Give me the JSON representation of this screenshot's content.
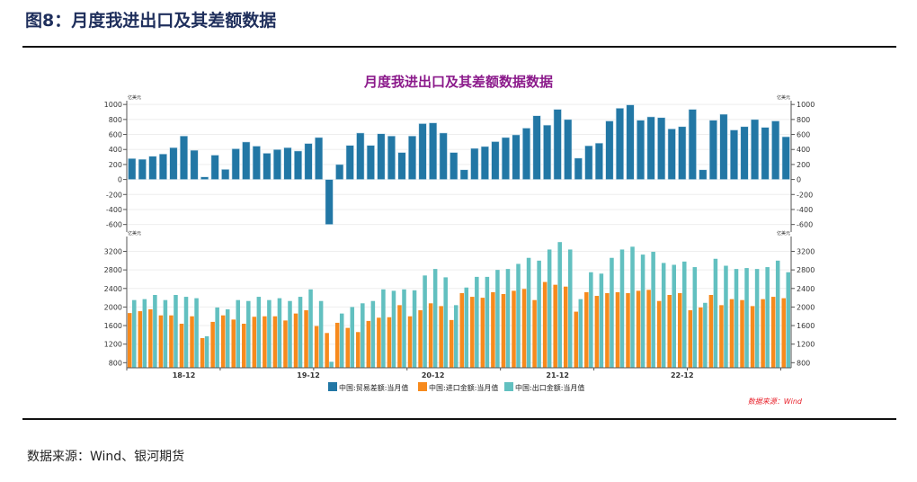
{
  "header": {
    "figure_title": "图8：月度我进出口及其差额数据"
  },
  "footer": {
    "source": "数据来源：Wind、银河期货"
  },
  "colors": {
    "balance": "#2277a5",
    "imports": "#f78a1d",
    "exports": "#62c0c0",
    "title": "#8b1a8b",
    "source_note": "#e8202a"
  },
  "chart_data": [
    {
      "type": "bar",
      "title": "月度我进出口及其差额数据数据",
      "unit_left": "亿美元",
      "unit_right": "亿美元",
      "ylim": [
        -700,
        1050
      ],
      "yticks": [
        -600,
        -400,
        -200,
        0,
        200,
        400,
        600,
        800,
        1000
      ],
      "grid": true,
      "series": [
        {
          "name": "中国:贸易差额:当月值",
          "color": "#2277a5",
          "values": [
            280,
            270,
            310,
            340,
            425,
            580,
            390,
            35,
            325,
            135,
            410,
            500,
            445,
            350,
            400,
            425,
            380,
            480,
            560,
            -600,
            200,
            455,
            620,
            455,
            610,
            580,
            360,
            580,
            745,
            755,
            620,
            360,
            130,
            415,
            440,
            505,
            560,
            595,
            685,
            850,
            725,
            935,
            800,
            285,
            450,
            485,
            780,
            950,
            995,
            790,
            835,
            825,
            675,
            705,
            935,
            130,
            790,
            870,
            660,
            705,
            800,
            695,
            780,
            570
          ]
        }
      ]
    },
    {
      "type": "bar",
      "unit_left": "亿美元",
      "unit_right": "亿美元",
      "ylim": [
        690,
        3520
      ],
      "yticks": [
        800,
        1200,
        1600,
        2000,
        2400,
        2800,
        3200
      ],
      "grid": true,
      "x_tick_labels": [
        {
          "index": 5,
          "label": "18-12"
        },
        {
          "index": 17,
          "label": "19-12"
        },
        {
          "index": 29,
          "label": "20-12"
        },
        {
          "index": 41,
          "label": "21-12"
        },
        {
          "index": 53,
          "label": "22-12"
        }
      ],
      "series": [
        {
          "name": "中国:进口金额:当月值",
          "color": "#f78a1d",
          "values": [
            1870,
            1910,
            1950,
            1820,
            1820,
            1640,
            1800,
            1330,
            1680,
            1820,
            1730,
            1640,
            1790,
            1800,
            1800,
            1710,
            1860,
            1930,
            1590,
            1440,
            1660,
            1550,
            1460,
            1700,
            1770,
            1780,
            2040,
            1800,
            1930,
            2080,
            2020,
            1720,
            2300,
            2220,
            2200,
            2320,
            2280,
            2350,
            2390,
            2150,
            2540,
            2480,
            2440,
            1900,
            2320,
            2240,
            2300,
            2320,
            2300,
            2350,
            2370,
            2130,
            2260,
            2300,
            1930,
            1990,
            2260,
            2040,
            2170,
            2150,
            2020,
            2170,
            2220,
            2190
          ]
        },
        {
          "name": "中国:出口金额:当月值",
          "color": "#62c0c0",
          "values": [
            2150,
            2170,
            2260,
            2150,
            2260,
            2220,
            2190,
            1370,
            1990,
            1950,
            2150,
            2130,
            2220,
            2150,
            2190,
            2130,
            2220,
            2380,
            2130,
            820,
            1860,
            2000,
            2080,
            2130,
            2380,
            2350,
            2380,
            2360,
            2680,
            2820,
            2640,
            2040,
            2420,
            2650,
            2650,
            2800,
            2820,
            2930,
            3060,
            3000,
            3240,
            3400,
            3240,
            2170,
            2750,
            2720,
            3060,
            3240,
            3300,
            3130,
            3190,
            2950,
            2910,
            2980,
            2860,
            2090,
            3040,
            2890,
            2820,
            2840,
            2820,
            2860,
            3000,
            2750
          ]
        }
      ],
      "legend": {
        "placement": "bottom",
        "entries": [
          "中国:贸易差额:当月值",
          "中国:进口金额:当月值",
          "中国:出口金额:当月值"
        ]
      },
      "annotation": "数据来源：Wind"
    }
  ]
}
